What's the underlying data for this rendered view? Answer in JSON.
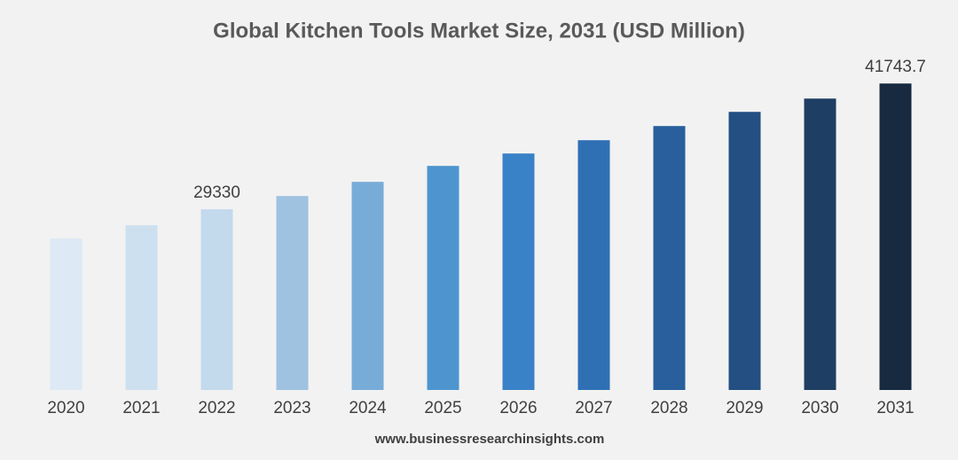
{
  "chart_data": {
    "type": "bar",
    "title": "Global Kitchen Tools Market Size, 2031 (USD Million)",
    "categories": [
      "2020",
      "2021",
      "2022",
      "2023",
      "2024",
      "2025",
      "2026",
      "2027",
      "2028",
      "2029",
      "2030",
      "2031"
    ],
    "values": [
      26445,
      27756,
      29330,
      30641,
      32040,
      33613,
      34837,
      36148,
      37547,
      38946,
      40257,
      41743.7
    ],
    "value_labels": [
      null,
      null,
      "29330",
      null,
      null,
      null,
      null,
      null,
      null,
      null,
      null,
      "41743.7"
    ],
    "colors": [
      "#dde9f5",
      "#cde0ef",
      "#c3d9ec",
      "#9fc2e0",
      "#78acd8",
      "#4e95d0",
      "#3a82c7",
      "#2f70b5",
      "#285f9c",
      "#234f82",
      "#1f3e63",
      "#172a40"
    ],
    "ylim": [
      11500,
      45000
    ],
    "source": "www.businessresearchinsights.com"
  }
}
